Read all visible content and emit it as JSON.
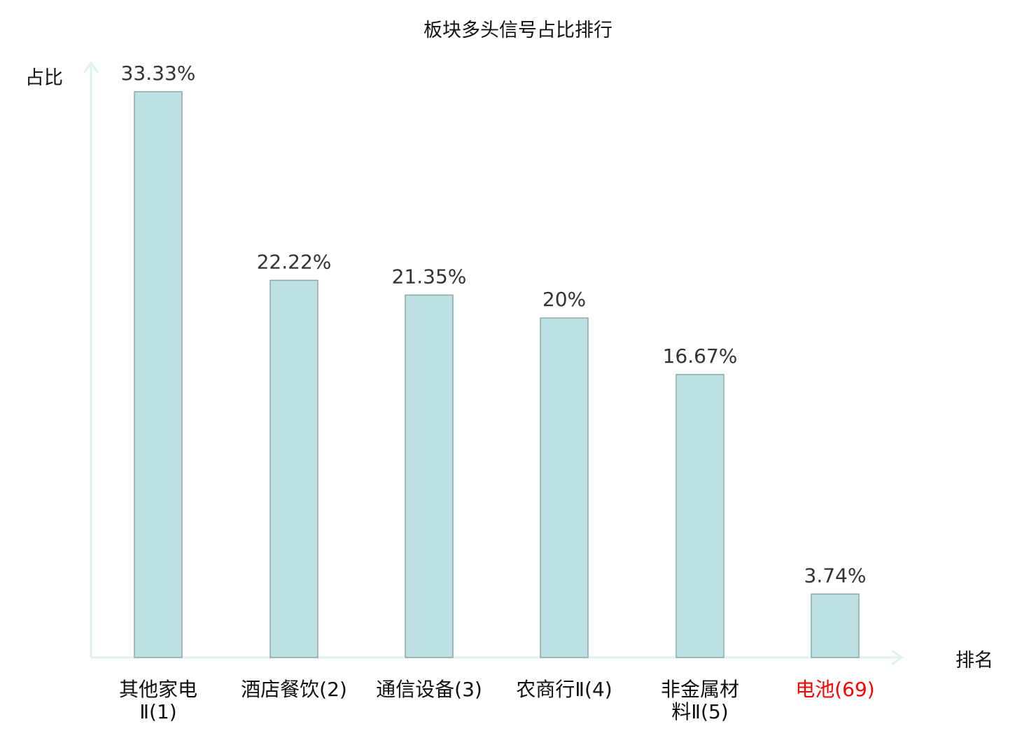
{
  "chart_data": {
    "type": "bar",
    "title": "板块多头信号占比排行",
    "ylabel": "占比",
    "xlabel": "排名",
    "categories": [
      "其他家电Ⅱ(1)",
      "酒店餐饮(2)",
      "通信设备(3)",
      "农商行Ⅱ(4)",
      "非金属材料Ⅱ(5)",
      "电池(69)"
    ],
    "label_lines": [
      [
        "其他家电",
        "Ⅱ(1)"
      ],
      [
        "酒店餐饮(2)"
      ],
      [
        "通信设备(3)"
      ],
      [
        "农商行Ⅱ(4)"
      ],
      [
        "非金属材",
        "料Ⅱ(5)"
      ],
      [
        "电池(69)"
      ]
    ],
    "values": [
      33.33,
      22.22,
      21.35,
      20,
      16.67,
      3.74
    ],
    "value_labels": [
      "33.33%",
      "22.22%",
      "21.35%",
      "20%",
      "16.67%",
      "3.74%"
    ],
    "highlight_index": 5,
    "ylim": [
      0,
      33.33
    ],
    "grid": false,
    "colors": {
      "bar_fill": "#bce0e3",
      "bar_stroke": "#8aa9aa",
      "axis": "#dff2ef",
      "highlight_label": "#ff0000",
      "text": "#333333"
    }
  }
}
